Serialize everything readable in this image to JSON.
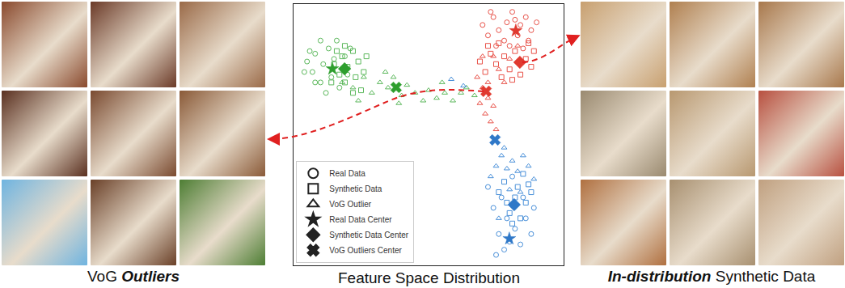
{
  "panels": [
    {
      "side": "left",
      "caption": "VoG Outliers",
      "emphasis": "Outliers"
    },
    {
      "side": "right",
      "caption": "In-distribution Synthetic Data",
      "emphasis": "In-distribution"
    }
  ],
  "chart_data": {
    "type": "scatter",
    "title": "Feature Space Distribution",
    "xlim": [
      0,
      100
    ],
    "ylim": [
      0,
      100
    ],
    "tick_labels": false,
    "grid": false,
    "legend": "bottom left",
    "series": [
      {
        "name": "Real Data",
        "marker": "circle-open",
        "points": [
          {
            "color": "#5cb85c",
            "x": [
              5,
              7,
              8,
              10,
              11,
              13,
              14,
              15,
              17,
              8,
              10,
              16,
              19,
              6,
              12,
              20,
              21,
              4
            ],
            "y": [
              78,
              74,
              81,
              70,
              77,
              83,
              72,
              79,
              68,
              70,
              86,
              86,
              80,
              82,
              66,
              73,
              83,
              74
            ]
          },
          {
            "color": "#e8534a",
            "x": [
              70,
              72,
              74,
              76,
              78,
              79,
              81,
              83,
              84,
              86,
              87,
              88,
              75,
              80,
              85,
              90,
              73,
              82
            ],
            "y": [
              92,
              88,
              95,
              90,
              86,
              93,
              97,
              88,
              92,
              95,
              86,
              90,
              84,
              84,
              83,
              93,
              97,
              94
            ]
          },
          {
            "color": "#4a90d9",
            "x": [
              72,
              74,
              76,
              78,
              79,
              80,
              82,
              84,
              85,
              86,
              88,
              77,
              81,
              89,
              75
            ],
            "y": [
              30,
              22,
              12,
              6,
              18,
              9,
              14,
              8,
              26,
              18,
              12,
              26,
              34,
              22,
              4
            ]
          }
        ]
      },
      {
        "name": "Synthetic Data",
        "marker": "square-open",
        "points": [
          {
            "color": "#5cb85c",
            "x": [
              15,
              17,
              18,
              19,
              20,
              22,
              23,
              24,
              26,
              19,
              14,
              25,
              27,
              16,
              22
            ],
            "y": [
              77,
              73,
              80,
              70,
              76,
              82,
              72,
              78,
              74,
              84,
              70,
              67,
              80,
              82,
              66
            ]
          },
          {
            "color": "#e8534a",
            "x": [
              69,
              71,
              73,
              75,
              77,
              78,
              80,
              82,
              84,
              86,
              88,
              89,
              76,
              81,
              87,
              72
            ],
            "y": [
              78,
              74,
              81,
              77,
              72,
              80,
              75,
              82,
              73,
              79,
              76,
              82,
              85,
              71,
              85,
              84
            ]
          },
          {
            "color": "#4a90d9",
            "x": [
              76,
              78,
              80,
              82,
              83,
              84,
              86,
              87,
              79,
              81,
              88,
              85
            ],
            "y": [
              28,
              32,
              20,
              26,
              30,
              18,
              24,
              31,
              24,
              16,
              28,
              35
            ]
          }
        ]
      },
      {
        "name": "VoG Outlier",
        "marker": "triangle-up-open",
        "points": [
          {
            "color": "#5cb85c",
            "x": [
              18,
              22,
              26,
              29,
              32,
              35,
              37,
              40,
              42,
              45,
              48,
              50,
              53,
              56,
              59,
              62,
              24,
              34,
              39,
              55,
              64,
              67
            ],
            "y": [
              70,
              68,
              72,
              66,
              70,
              68,
              72,
              65,
              69,
              66,
              63,
              67,
              64,
              66,
              63,
              66,
              63,
              74,
              62,
              70,
              68,
              65
            ]
          },
          {
            "color": "#e8534a",
            "x": [
              68,
              70,
              72,
              71,
              73,
              74,
              69,
              75,
              72,
              76,
              78,
              80,
              83,
              74,
              70
            ],
            "y": [
              72,
              68,
              64,
              58,
              55,
              61,
              62,
              52,
              70,
              75,
              70,
              79,
              84,
              80,
              80
            ]
          },
          {
            "color": "#4a90d9",
            "x": [
              73,
              75,
              77,
              79,
              81,
              83,
              85,
              87,
              84,
              80,
              76,
              89,
              58.4,
              62.9,
              78
            ],
            "y": [
              34,
              38,
              42,
              37,
              40,
              36,
              42,
              38,
              28,
              29,
              18,
              33,
              71.2,
              68.7,
              45
            ]
          }
        ]
      },
      {
        "name": "Real Data Center",
        "marker": "star",
        "points": [
          {
            "color": "#2e9e2e",
            "x": [
              14.4
            ],
            "y": [
              75.2
            ]
          },
          {
            "color": "#e03a30",
            "x": [
              82.3
            ],
            "y": [
              89.8
            ]
          },
          {
            "color": "#2f78c8",
            "x": [
              79.9
            ],
            "y": [
              10.2
            ]
          }
        ]
      },
      {
        "name": "Synthetic Data Center",
        "marker": "diamond",
        "points": [
          {
            "color": "#2e9e2e",
            "x": [
              18.9
            ],
            "y": [
              75.2
            ]
          },
          {
            "color": "#e03a30",
            "x": [
              83.8
            ],
            "y": [
              77.7
            ]
          },
          {
            "color": "#2f78c8",
            "x": [
              81.7
            ],
            "y": [
              23.2
            ]
          }
        ]
      },
      {
        "name": "VoG Outliers Center",
        "marker": "x",
        "points": [
          {
            "color": "#2e9e2e",
            "x": [
              38.0
            ],
            "y": [
              68.1
            ]
          },
          {
            "color": "#e03a30",
            "x": [
              71.3
            ],
            "y": [
              66.6
            ]
          },
          {
            "color": "#2f78c8",
            "x": [
              74.6
            ],
            "y": [
              48.0
            ]
          }
        ]
      }
    ]
  }
}
